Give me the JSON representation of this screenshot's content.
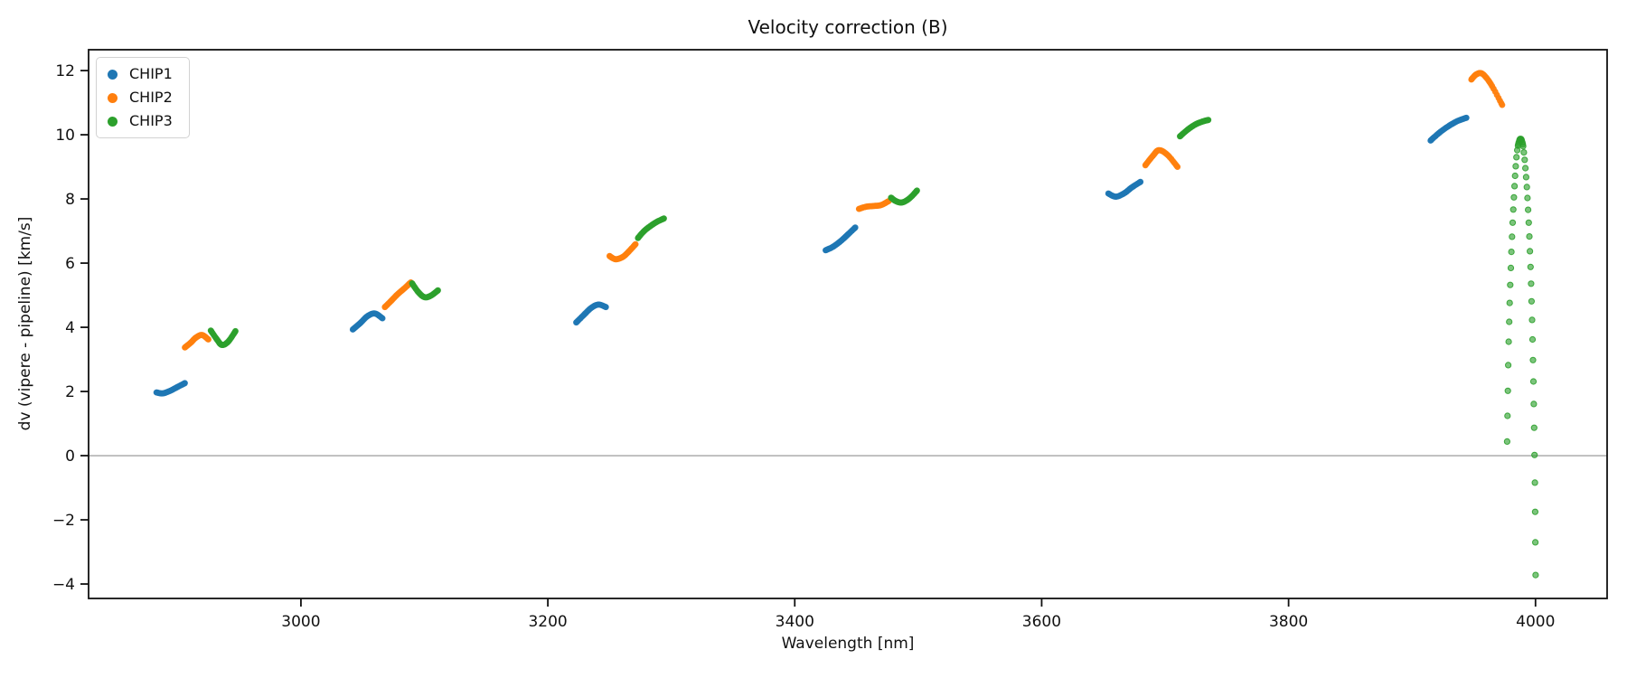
{
  "chart_data": {
    "type": "scatter",
    "title": "Velocity correction (B)",
    "xlabel": "Wavelength [nm]",
    "ylabel": "dv (vipere - pipeline) [km/s]",
    "xlim": [
      2828,
      4058
    ],
    "ylim": [
      -4.45,
      12.65
    ],
    "xticks": [
      3000,
      3200,
      3400,
      3600,
      3800,
      4000
    ],
    "yticks": [
      -4,
      -2,
      0,
      2,
      4,
      6,
      8,
      10,
      12
    ],
    "grid": false,
    "legend_position": "upper left",
    "axis_color": "#111111",
    "zero_line": {
      "y": 0,
      "color": "#909090"
    },
    "series": [
      {
        "name": "CHIP1",
        "color": "#1f77b4",
        "marker_radius": 3.4,
        "dots_per_segment": 32,
        "segments": [
          {
            "cx": [
              2883,
              2888,
              2894,
              2900,
              2906
            ],
            "cy": [
              1.97,
              1.94,
              2.02,
              2.14,
              2.26
            ]
          },
          {
            "cx": [
              3042,
              3048,
              3054,
              3060,
              3066
            ],
            "cy": [
              3.93,
              4.13,
              4.35,
              4.43,
              4.28
            ]
          },
          {
            "cx": [
              3223,
              3229,
              3235,
              3241,
              3247
            ],
            "cy": [
              4.15,
              4.38,
              4.6,
              4.71,
              4.63
            ]
          },
          {
            "cx": [
              3425,
              3431,
              3437,
              3443,
              3449
            ],
            "cy": [
              6.4,
              6.51,
              6.68,
              6.89,
              7.11
            ]
          },
          {
            "cx": [
              3654,
              3660,
              3667,
              3673,
              3680
            ],
            "cy": [
              8.17,
              8.07,
              8.18,
              8.36,
              8.53
            ]
          },
          {
            "cx": [
              3915,
              3922,
              3930,
              3937,
              3944
            ],
            "cy": [
              9.82,
              10.06,
              10.28,
              10.43,
              10.53
            ]
          }
        ]
      },
      {
        "name": "CHIP2",
        "color": "#ff7f0e",
        "marker_radius": 3.4,
        "dots_per_segment": 32,
        "segments": [
          {
            "cx": [
              2906,
              2911,
              2915,
              2920,
              2925
            ],
            "cy": [
              3.37,
              3.53,
              3.68,
              3.76,
              3.62
            ]
          },
          {
            "cx": [
              3068,
              3073,
              3078,
              3084,
              3089
            ],
            "cy": [
              4.63,
              4.82,
              5.02,
              5.22,
              5.4
            ]
          },
          {
            "cx": [
              3250,
              3255,
              3261,
              3266,
              3271
            ],
            "cy": [
              6.22,
              6.12,
              6.2,
              6.38,
              6.59
            ]
          },
          {
            "cx": [
              3452,
              3458,
              3464,
              3470,
              3476
            ],
            "cy": [
              7.69,
              7.76,
              7.78,
              7.81,
              7.93
            ]
          },
          {
            "cx": [
              3684,
              3690,
              3695,
              3702,
              3710
            ],
            "cy": [
              9.05,
              9.34,
              9.52,
              9.37,
              9.0
            ]
          },
          {
            "cx": [
              3948,
              3952,
              3957,
              3964,
              3973
            ],
            "cy": [
              11.72,
              11.88,
              11.9,
              11.57,
              10.93
            ]
          }
        ]
      },
      {
        "name": "CHIP3",
        "color": "#2ca02c",
        "marker_radius": 3.4,
        "dots_per_segment": 32,
        "segments": [
          {
            "cx": [
              2927,
              2932,
              2936,
              2941,
              2947
            ],
            "cy": [
              3.9,
              3.62,
              3.45,
              3.55,
              3.88
            ]
          },
          {
            "cx": [
              3090,
              3095,
              3100,
              3105,
              3111
            ],
            "cy": [
              5.37,
              5.1,
              4.94,
              4.98,
              5.15
            ]
          },
          {
            "cx": [
              3273,
              3278,
              3284,
              3289,
              3294
            ],
            "cy": [
              6.78,
              7.0,
              7.18,
              7.3,
              7.39
            ]
          },
          {
            "cx": [
              3478,
              3482,
              3487,
              3493,
              3499
            ],
            "cy": [
              8.04,
              7.93,
              7.89,
              8.02,
              8.26
            ]
          },
          {
            "cx": [
              3712,
              3718,
              3724,
              3730,
              3735
            ],
            "cy": [
              9.95,
              10.15,
              10.31,
              10.41,
              10.46
            ]
          }
        ],
        "spike": {
          "marker_radius": 3.1,
          "x": [
            3977.0,
            3977.3,
            3977.6,
            3977.9,
            3978.3,
            3978.7,
            3979.1,
            3979.5,
            3980.0,
            3980.5,
            3981.0,
            3981.5,
            3982.0,
            3982.5,
            3983.0,
            3983.5,
            3984.0,
            3984.6,
            3985.2,
            3985.8,
            3986.4,
            3987.0,
            3987.6,
            3988.2,
            3988.8,
            3989.4,
            3990.0,
            3986.1,
            3987.3,
            3988.5,
            3989.7,
            3990.6,
            3991.2,
            3991.8,
            3992.4,
            3993.0,
            3993.5,
            3994.0,
            3994.5,
            3995.0,
            3995.5,
            3996.0,
            3996.4,
            3996.8,
            3997.2,
            3997.6,
            3998.0,
            3998.3,
            3998.6,
            3998.9,
            3999.2,
            3999.5,
            3999.7,
            3999.9,
            4000.1
          ],
          "y": [
            0.44,
            1.24,
            2.02,
            2.82,
            3.55,
            4.17,
            4.76,
            5.32,
            5.85,
            6.35,
            6.82,
            7.26,
            7.67,
            8.05,
            8.4,
            8.72,
            9.02,
            9.3,
            9.52,
            9.66,
            9.76,
            9.83,
            9.87,
            9.87,
            9.83,
            9.76,
            9.64,
            9.71,
            9.85,
            9.85,
            9.7,
            9.45,
            9.22,
            8.96,
            8.68,
            8.37,
            8.03,
            7.66,
            7.26,
            6.83,
            6.37,
            5.88,
            5.36,
            4.81,
            4.23,
            3.62,
            2.98,
            2.31,
            1.61,
            0.87,
            0.02,
            -0.84,
            -1.75,
            -2.7,
            -3.72
          ]
        }
      }
    ]
  }
}
